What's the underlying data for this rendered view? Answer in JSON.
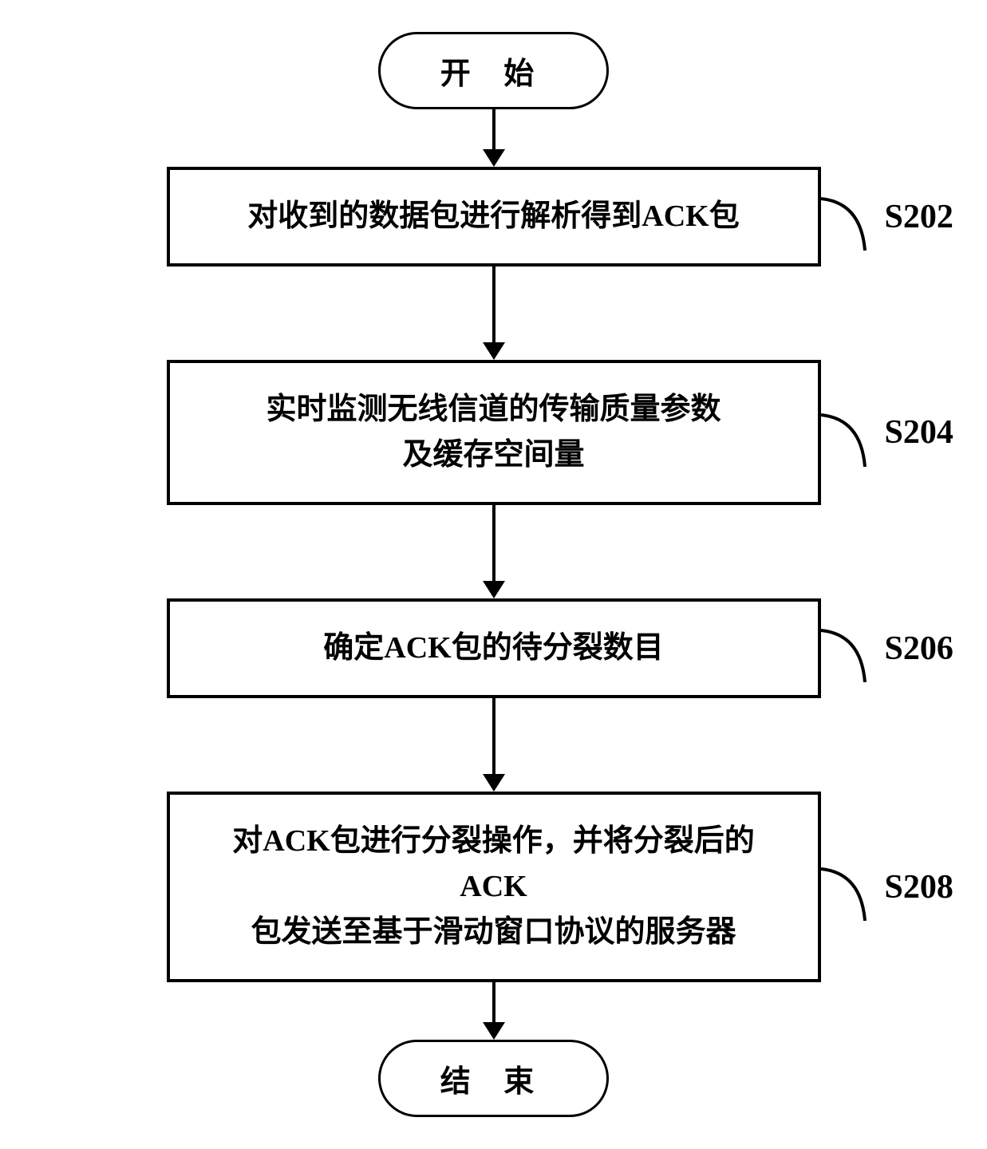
{
  "flowchart": {
    "type": "flowchart",
    "direction": "vertical",
    "background_color": "#ffffff",
    "border_color": "#000000",
    "border_width": 4,
    "text_color": "#000000",
    "font_family": "SimSun",
    "start": {
      "text": "开 始",
      "shape": "rounded",
      "fontsize": 38,
      "font_weight": "bold"
    },
    "end": {
      "text": "结 束",
      "shape": "rounded",
      "fontsize": 38,
      "font_weight": "bold"
    },
    "steps": [
      {
        "text": "对收到的数据包进行解析得到ACK包",
        "label": "S202",
        "shape": "rectangle"
      },
      {
        "text": "实时监测无线信道的传输质量参数\n及缓存空间量",
        "label": "S204",
        "shape": "rectangle"
      },
      {
        "text": "确定ACK包的待分裂数目",
        "label": "S206",
        "shape": "rectangle"
      },
      {
        "text": "对ACK包进行分裂操作，并将分裂后的ACK\n包发送至基于滑动窗口协议的服务器",
        "label": "S208",
        "shape": "rectangle"
      }
    ],
    "arrow": {
      "line_width": 4,
      "head_width": 28,
      "head_height": 22,
      "short_length": 50,
      "long_length": 90
    },
    "connector_curve": {
      "stroke": "#000000",
      "stroke_width": 4
    },
    "label_style": {
      "fontsize": 42,
      "font_weight": "bold"
    }
  }
}
